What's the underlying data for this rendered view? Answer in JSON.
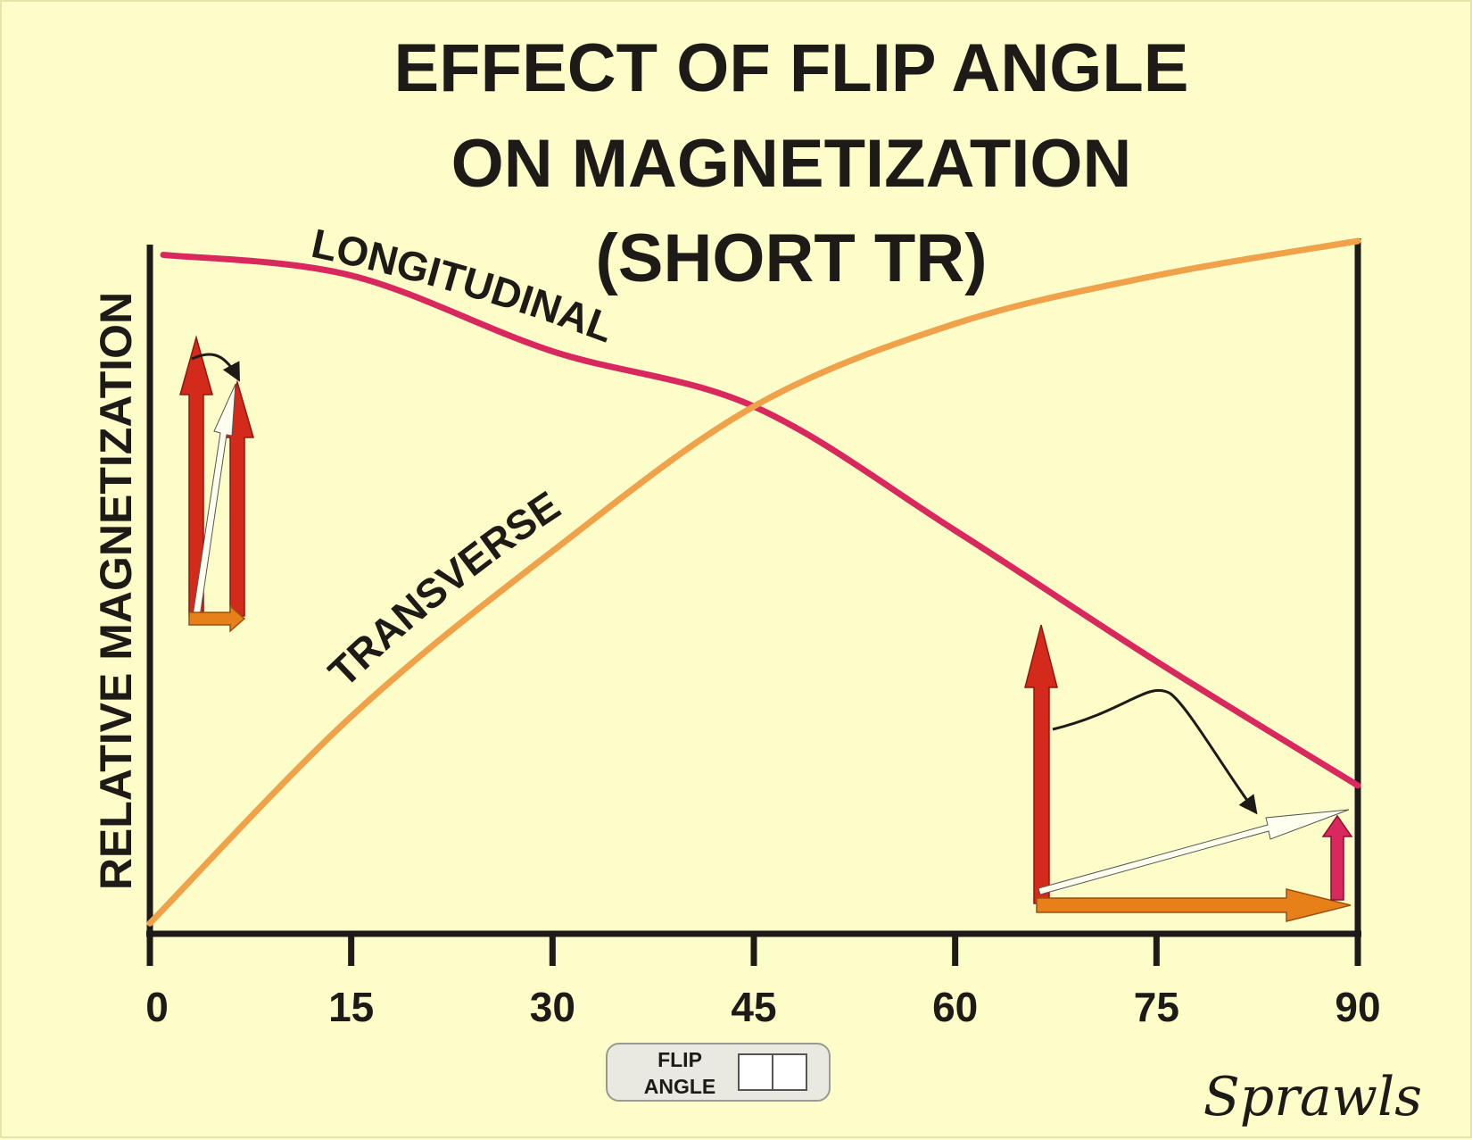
{
  "chart_data": {
    "type": "line",
    "title": [
      "EFFECT OF FLIP ANGLE",
      "ON MAGNETIZATION",
      "(SHORT TR)"
    ],
    "xlabel": "",
    "ylabel": "RELATIVE MAGNETIZATION",
    "xlim": [
      0,
      90
    ],
    "ylim": [
      0,
      1
    ],
    "x_ticks": [
      0,
      15,
      30,
      45,
      60,
      75,
      90
    ],
    "x_tick_labels": [
      "0",
      "15",
      "30",
      "45",
      "60",
      "75",
      "90"
    ],
    "grid": false,
    "series": [
      {
        "name": "LONGITUDINAL",
        "color": "#d9285e",
        "x": [
          1,
          15,
          30,
          45,
          60,
          75,
          90
        ],
        "y": [
          0.98,
          0.95,
          0.84,
          0.76,
          0.58,
          0.39,
          0.21
        ]
      },
      {
        "name": "TRANSVERSE",
        "color": "#f0a24a",
        "x": [
          0,
          15,
          30,
          45,
          60,
          75,
          90
        ],
        "y": [
          0.01,
          0.31,
          0.55,
          0.76,
          0.88,
          0.95,
          1.0
        ]
      }
    ]
  },
  "flip_angle_control": {
    "label_line1": "FLIP",
    "label_line2": "ANGLE"
  },
  "signature": "Sprawls",
  "colors": {
    "background": "#fdfdc9",
    "axis": "#1d1a17",
    "vector_red": "#d42a1c",
    "vector_orange": "#e8801a",
    "vector_pink": "#d9285e"
  }
}
